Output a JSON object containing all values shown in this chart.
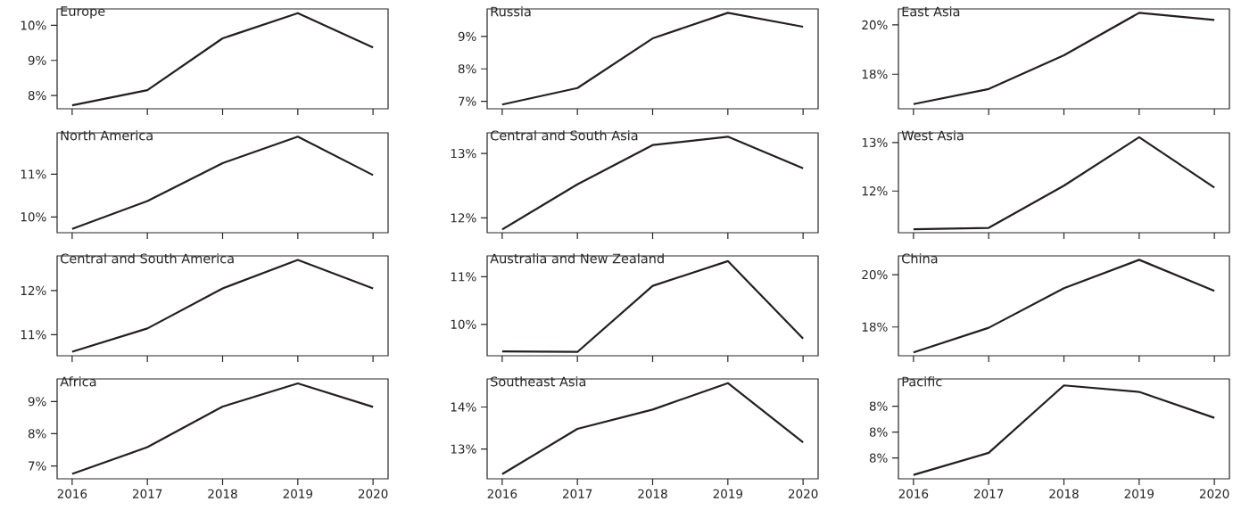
{
  "chart_data": [
    {
      "type": "line",
      "title": "Europe",
      "x": [
        2016,
        2017,
        2018,
        2019,
        2020
      ],
      "series": [
        {
          "color": "#231f20",
          "values": [
            7.72,
            8.15,
            9.63,
            10.35,
            9.37
          ]
        }
      ],
      "xlim": [
        2015.8,
        2020.2
      ],
      "xticks": [
        {
          "value": 2016,
          "label": null
        },
        {
          "value": 2017,
          "label": null
        },
        {
          "value": 2018,
          "label": null
        },
        {
          "value": 2019,
          "label": null
        },
        {
          "value": 2020,
          "label": null
        }
      ],
      "ylim": [
        7.62,
        10.47
      ],
      "yticks": [
        {
          "value": 8,
          "label": "8%"
        },
        {
          "value": 9,
          "label": "9%"
        },
        {
          "value": 10,
          "label": "10%"
        }
      ],
      "tick_labels": "y"
    },
    {
      "type": "line",
      "title": "Russia",
      "x": [
        2016,
        2017,
        2018,
        2019,
        2020
      ],
      "series": [
        {
          "color": "#231f20",
          "values": [
            6.9,
            7.41,
            8.94,
            9.73,
            9.3
          ]
        }
      ],
      "xlim": [
        2015.8,
        2020.2
      ],
      "xticks": [
        {
          "value": 2016,
          "label": null
        },
        {
          "value": 2017,
          "label": null
        },
        {
          "value": 2018,
          "label": null
        },
        {
          "value": 2019,
          "label": null
        },
        {
          "value": 2020,
          "label": null
        }
      ],
      "ylim": [
        6.77,
        9.85
      ],
      "yticks": [
        {
          "value": 7,
          "label": "7%"
        },
        {
          "value": 8,
          "label": "8%"
        },
        {
          "value": 9,
          "label": "9%"
        }
      ],
      "tick_labels": "y"
    },
    {
      "type": "line",
      "title": "East Asia",
      "x": [
        2016,
        2017,
        2018,
        2019,
        2020
      ],
      "series": [
        {
          "color": "#231f20",
          "values": [
            16.79,
            17.4,
            18.77,
            20.49,
            20.2
          ]
        }
      ],
      "xlim": [
        2015.8,
        2020.2
      ],
      "xticks": [
        {
          "value": 2016,
          "label": null
        },
        {
          "value": 2017,
          "label": null
        },
        {
          "value": 2018,
          "label": null
        },
        {
          "value": 2019,
          "label": null
        },
        {
          "value": 2020,
          "label": null
        }
      ],
      "ylim": [
        16.6,
        20.65
      ],
      "yticks": [
        {
          "value": 18,
          "label": "18%"
        },
        {
          "value": 20,
          "label": "20%"
        }
      ],
      "tick_labels": "y"
    },
    {
      "type": "line",
      "title": "North America",
      "x": [
        2016,
        2017,
        2018,
        2019,
        2020
      ],
      "series": [
        {
          "color": "#231f20",
          "values": [
            9.72,
            10.37,
            11.26,
            11.88,
            10.98
          ]
        }
      ],
      "xlim": [
        2015.8,
        2020.2
      ],
      "xticks": [
        {
          "value": 2016,
          "label": null
        },
        {
          "value": 2017,
          "label": null
        },
        {
          "value": 2018,
          "label": null
        },
        {
          "value": 2019,
          "label": null
        },
        {
          "value": 2020,
          "label": null
        }
      ],
      "ylim": [
        9.63,
        11.97
      ],
      "yticks": [
        {
          "value": 10,
          "label": "10%"
        },
        {
          "value": 11,
          "label": "11%"
        }
      ],
      "tick_labels": "y"
    },
    {
      "type": "line",
      "title": "Central and South Asia",
      "x": [
        2016,
        2017,
        2018,
        2019,
        2020
      ],
      "series": [
        {
          "color": "#231f20",
          "values": [
            11.82,
            12.52,
            13.13,
            13.26,
            12.77
          ]
        }
      ],
      "xlim": [
        2015.8,
        2020.2
      ],
      "xticks": [
        {
          "value": 2016,
          "label": null
        },
        {
          "value": 2017,
          "label": null
        },
        {
          "value": 2018,
          "label": null
        },
        {
          "value": 2019,
          "label": null
        },
        {
          "value": 2020,
          "label": null
        }
      ],
      "ylim": [
        11.77,
        13.32
      ],
      "yticks": [
        {
          "value": 12,
          "label": "12%"
        },
        {
          "value": 13,
          "label": "13%"
        }
      ],
      "tick_labels": "y"
    },
    {
      "type": "line",
      "title": "West Asia",
      "x": [
        2016,
        2017,
        2018,
        2019,
        2020
      ],
      "series": [
        {
          "color": "#231f20",
          "values": [
            11.21,
            11.24,
            12.11,
            13.11,
            12.07
          ]
        }
      ],
      "xlim": [
        2015.8,
        2020.2
      ],
      "xticks": [
        {
          "value": 2016,
          "label": null
        },
        {
          "value": 2017,
          "label": null
        },
        {
          "value": 2018,
          "label": null
        },
        {
          "value": 2019,
          "label": null
        },
        {
          "value": 2020,
          "label": null
        }
      ],
      "ylim": [
        11.14,
        13.2
      ],
      "yticks": [
        {
          "value": 12,
          "label": "12%"
        },
        {
          "value": 13,
          "label": "13%"
        }
      ],
      "tick_labels": "y"
    },
    {
      "type": "line",
      "title": "Central and South America",
      "x": [
        2016,
        2017,
        2018,
        2019,
        2020
      ],
      "series": [
        {
          "color": "#231f20",
          "values": [
            10.61,
            11.14,
            12.05,
            12.7,
            12.05
          ]
        }
      ],
      "xlim": [
        2015.8,
        2020.2
      ],
      "xticks": [
        {
          "value": 2016,
          "label": null
        },
        {
          "value": 2017,
          "label": null
        },
        {
          "value": 2018,
          "label": null
        },
        {
          "value": 2019,
          "label": null
        },
        {
          "value": 2020,
          "label": null
        }
      ],
      "ylim": [
        10.52,
        12.79
      ],
      "yticks": [
        {
          "value": 11,
          "label": "11%"
        },
        {
          "value": 12,
          "label": "12%"
        }
      ],
      "tick_labels": "y"
    },
    {
      "type": "line",
      "title": "Australia and New Zealand",
      "x": [
        2016,
        2017,
        2018,
        2019,
        2020
      ],
      "series": [
        {
          "color": "#231f20",
          "values": [
            9.43,
            9.42,
            10.81,
            11.33,
            9.7
          ]
        }
      ],
      "xlim": [
        2015.8,
        2020.2
      ],
      "xticks": [
        {
          "value": 2016,
          "label": null
        },
        {
          "value": 2017,
          "label": null
        },
        {
          "value": 2018,
          "label": null
        },
        {
          "value": 2019,
          "label": null
        },
        {
          "value": 2020,
          "label": null
        }
      ],
      "ylim": [
        9.34,
        11.44
      ],
      "yticks": [
        {
          "value": 10,
          "label": "10%"
        },
        {
          "value": 11,
          "label": "11%"
        }
      ],
      "tick_labels": "y"
    },
    {
      "type": "line",
      "title": "China",
      "x": [
        2016,
        2017,
        2018,
        2019,
        2020
      ],
      "series": [
        {
          "color": "#231f20",
          "values": [
            17.03,
            17.97,
            19.48,
            20.57,
            19.38
          ]
        }
      ],
      "xlim": [
        2015.8,
        2020.2
      ],
      "xticks": [
        {
          "value": 2016,
          "label": null
        },
        {
          "value": 2017,
          "label": null
        },
        {
          "value": 2018,
          "label": null
        },
        {
          "value": 2019,
          "label": null
        },
        {
          "value": 2020,
          "label": null
        }
      ],
      "ylim": [
        16.9,
        20.72
      ],
      "yticks": [
        {
          "value": 18,
          "label": "18%"
        },
        {
          "value": 20,
          "label": "20%"
        }
      ],
      "tick_labels": "y"
    },
    {
      "type": "line",
      "title": "Africa",
      "x": [
        2016,
        2017,
        2018,
        2019,
        2020
      ],
      "series": [
        {
          "color": "#231f20",
          "values": [
            6.75,
            7.58,
            8.84,
            9.56,
            8.83
          ]
        }
      ],
      "xlim": [
        2015.8,
        2020.2
      ],
      "xticks": [
        2016,
        2017,
        2018,
        2019,
        2020
      ],
      "ylim": [
        6.6,
        9.7
      ],
      "yticks": [
        {
          "value": 7,
          "label": "7%"
        },
        {
          "value": 8,
          "label": "8%"
        },
        {
          "value": 9,
          "label": "9%"
        }
      ]
    },
    {
      "type": "line",
      "title": "Southeast Asia",
      "x": [
        2016,
        2017,
        2018,
        2019,
        2020
      ],
      "series": [
        {
          "color": "#231f20",
          "values": [
            12.4,
            13.48,
            13.94,
            14.57,
            13.16
          ]
        }
      ],
      "xlim": [
        2015.8,
        2020.2
      ],
      "xticks": [
        2016,
        2017,
        2018,
        2019,
        2020
      ],
      "ylim": [
        12.29,
        14.67
      ],
      "yticks": [
        {
          "value": 13,
          "label": "13%"
        },
        {
          "value": 14,
          "label": "14%"
        }
      ]
    },
    {
      "type": "line",
      "title": "Pacific",
      "x": [
        2016,
        2017,
        2018,
        2019,
        2020
      ],
      "series": [
        {
          "color": "#231f20",
          "values": [
            7.67,
            7.84,
            8.36,
            8.31,
            8.11
          ]
        }
      ],
      "xlim": [
        2015.8,
        2020.2
      ],
      "xticks": [
        2016,
        2017,
        2018,
        2019,
        2020
      ],
      "ylim": [
        7.64,
        8.41
      ],
      "yticks": [
        {
          "value": 7.8,
          "label": "8%"
        },
        {
          "value": 8.0,
          "label": "8%"
        },
        {
          "value": 8.2,
          "label": "8%"
        }
      ]
    }
  ]
}
